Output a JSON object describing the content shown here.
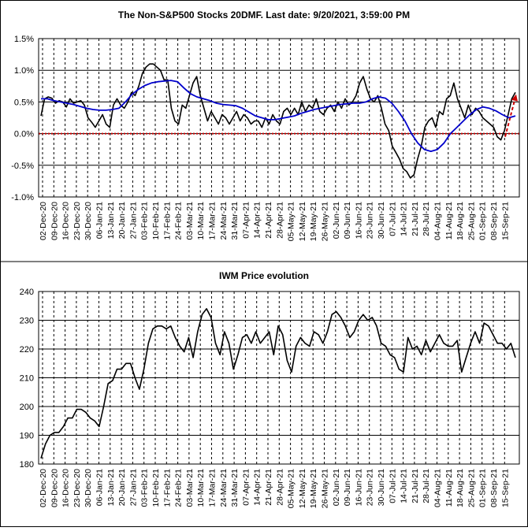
{
  "chart_data": [
    {
      "type": "line",
      "title": "The Non-S&P500 Stocks 20DMF. Last date: 9/20/2021, 3:59:00 PM",
      "ylim": [
        -1.0,
        1.5
      ],
      "y_ticks": [
        "-1.0%",
        "-0.5%",
        "0.0%",
        "0.5%",
        "1.0%",
        "1.5%"
      ],
      "y_tick_values": [
        -1.0,
        -0.5,
        0.0,
        0.5,
        1.0,
        1.5
      ],
      "x_tick_labels": [
        "02-Dec-20",
        "09-Dec-20",
        "16-Dec-20",
        "23-Dec-20",
        "30-Dec-20",
        "06-Jan-21",
        "13-Jan-21",
        "20-Jan-21",
        "27-Jan-21",
        "03-Feb-21",
        "10-Feb-21",
        "17-Feb-21",
        "24-Feb-21",
        "03-Mar-21",
        "10-Mar-21",
        "17-Mar-21",
        "24-Mar-21",
        "31-Mar-21",
        "07-Apr-21",
        "14-Apr-21",
        "21-Apr-21",
        "28-Apr-21",
        "05-May-21",
        "12-May-21",
        "19-May-21",
        "26-May-21",
        "02-Jun-21",
        "09-Jun-21",
        "16-Jun-21",
        "23-Jun-21",
        "30-Jun-21",
        "07-Jul-21",
        "14-Jul-21",
        "21-Jul-21",
        "28-Jul-21",
        "04-Aug-21",
        "11-Aug-21",
        "18-Aug-21",
        "25-Aug-21",
        "01-Sep-21",
        "08-Sep-21",
        "15-Sep-21"
      ],
      "grid": "vertical dashed lines at each weekly tick, solid horizontal lines",
      "series": [
        {
          "color": "#000000",
          "values": [
            0.28,
            0.55,
            0.58,
            0.56,
            0.48,
            0.52,
            0.5,
            0.42,
            0.55,
            0.48,
            0.5,
            0.52,
            0.45,
            0.25,
            0.18,
            0.1,
            0.2,
            0.3,
            0.15,
            0.1,
            0.45,
            0.55,
            0.45,
            0.4,
            0.5,
            0.65,
            0.6,
            0.75,
            0.95,
            1.05,
            1.1,
            1.1,
            1.05,
            1.0,
            0.85,
            0.85,
            0.4,
            0.2,
            0.15,
            0.45,
            0.4,
            0.6,
            0.8,
            0.9,
            0.6,
            0.4,
            0.2,
            0.35,
            0.25,
            0.15,
            0.3,
            0.25,
            0.15,
            0.25,
            0.35,
            0.2,
            0.3,
            0.25,
            0.15,
            0.2,
            0.2,
            0.1,
            0.25,
            0.15,
            0.3,
            0.2,
            0.15,
            0.35,
            0.4,
            0.3,
            0.4,
            0.3,
            0.5,
            0.35,
            0.45,
            0.4,
            0.55,
            0.35,
            0.3,
            0.4,
            0.45,
            0.35,
            0.5,
            0.4,
            0.55,
            0.45,
            0.5,
            0.6,
            0.8,
            0.9,
            0.7,
            0.55,
            0.5,
            0.6,
            0.4,
            0.15,
            0.05,
            -0.2,
            -0.3,
            -0.4,
            -0.55,
            -0.6,
            -0.7,
            -0.65,
            -0.4,
            -0.2,
            0.1,
            0.2,
            0.25,
            0.1,
            0.35,
            0.3,
            0.55,
            0.6,
            0.8,
            0.55,
            0.4,
            0.25,
            0.45,
            0.3,
            0.4,
            0.35,
            0.25,
            0.2,
            0.15,
            0.1,
            -0.05,
            -0.1,
            0.05,
            0.3,
            0.55,
            0.65
          ]
        },
        {
          "color": "#0000cc",
          "values": [
            0.55,
            0.55,
            0.52,
            0.5,
            0.48,
            0.46,
            0.43,
            0.4,
            0.38,
            0.37,
            0.37,
            0.38,
            0.4,
            0.5,
            0.62,
            0.7,
            0.76,
            0.8,
            0.82,
            0.83,
            0.84,
            0.82,
            0.72,
            0.63,
            0.58,
            0.55,
            0.52,
            0.48,
            0.46,
            0.45,
            0.44,
            0.4,
            0.34,
            0.28,
            0.25,
            0.22,
            0.22,
            0.24,
            0.26,
            0.28,
            0.32,
            0.35,
            0.38,
            0.4,
            0.42,
            0.44,
            0.46,
            0.47,
            0.48,
            0.48,
            0.5,
            0.55,
            0.58,
            0.56,
            0.48,
            0.35,
            0.2,
            0.0,
            -0.15,
            -0.25,
            -0.28,
            -0.25,
            -0.15,
            0.0,
            0.1,
            0.2,
            0.3,
            0.38,
            0.42,
            0.4,
            0.36,
            0.3,
            0.25,
            0.28
          ]
        }
      ],
      "zero_line_color": "#cc0000",
      "arrow_color": "#cc0000"
    },
    {
      "type": "line",
      "title": "IWM Price evolution",
      "ylim": [
        180,
        240
      ],
      "y_ticks": [
        "180",
        "190",
        "200",
        "210",
        "220",
        "230",
        "240"
      ],
      "y_tick_values": [
        180,
        190,
        200,
        210,
        220,
        230,
        240
      ],
      "x_tick_labels": [
        "02-Dec-20",
        "09-Dec-20",
        "16-Dec-20",
        "23-Dec-20",
        "30-Dec-20",
        "06-Jan-21",
        "13-Jan-21",
        "20-Jan-21",
        "27-Jan-21",
        "03-Feb-21",
        "10-Feb-21",
        "17-Feb-21",
        "24-Feb-21",
        "03-Mar-21",
        "10-Mar-21",
        "17-Mar-21",
        "24-Mar-21",
        "31-Mar-21",
        "07-Apr-21",
        "14-Apr-21",
        "21-Apr-21",
        "28-Apr-21",
        "05-May-21",
        "12-May-21",
        "19-May-21",
        "26-May-21",
        "02-Jun-21",
        "09-Jun-21",
        "16-Jun-21",
        "23-Jun-21",
        "30-Jun-21",
        "07-Jul-21",
        "14-Jul-21",
        "21-Jul-21",
        "28-Jul-21",
        "04-Aug-21",
        "11-Aug-21",
        "18-Aug-21",
        "25-Aug-21",
        "01-Sep-21",
        "08-Sep-21",
        "15-Sep-21"
      ],
      "grid": "vertical dashed lines at each weekly tick, solid horizontal lines",
      "series": [
        {
          "color": "#000000",
          "values": [
            182,
            187,
            190,
            191,
            191,
            193,
            196,
            196,
            199,
            199,
            198,
            196,
            195,
            193,
            200,
            208,
            209,
            213,
            213,
            215,
            215,
            210,
            206,
            213,
            222,
            227,
            228,
            228,
            227,
            228,
            224,
            221,
            219,
            224,
            217,
            226,
            232,
            234,
            231,
            222,
            218,
            226,
            222,
            213,
            218,
            224,
            225,
            222,
            226,
            222,
            224,
            226,
            218,
            228,
            225,
            216,
            212,
            221,
            224,
            222,
            221,
            226,
            225,
            222,
            226,
            232,
            233,
            231,
            228,
            224,
            226,
            230,
            232,
            230,
            231,
            228,
            222,
            221,
            218,
            217,
            213,
            212,
            224,
            220,
            221,
            218,
            223,
            219,
            222,
            225,
            222,
            221,
            221,
            223,
            212,
            217,
            222,
            226,
            222,
            229,
            228,
            225,
            222,
            222,
            220,
            222,
            217
          ]
        }
      ]
    }
  ]
}
